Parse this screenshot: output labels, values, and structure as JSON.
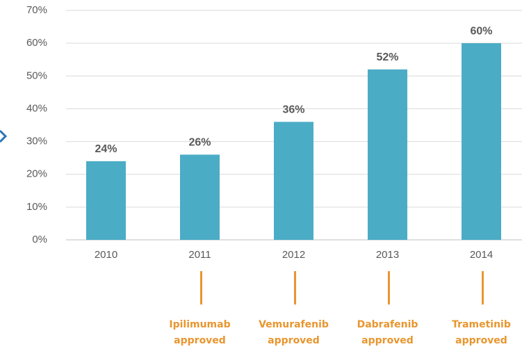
{
  "chart_data": {
    "type": "bar",
    "categories": [
      "2010",
      "2011",
      "2012",
      "2013",
      "2014"
    ],
    "values": [
      24,
      26,
      36,
      52,
      60
    ],
    "value_labels": [
      "24%",
      "26%",
      "36%",
      "52%",
      "60%"
    ],
    "color": "#4bacc6",
    "ylim": [
      0,
      70
    ],
    "yticks": [
      {
        "value": 0,
        "label": "0%"
      },
      {
        "value": 10,
        "label": "10%"
      },
      {
        "value": 20,
        "label": "20%"
      },
      {
        "value": 30,
        "label": "30%"
      },
      {
        "value": 40,
        "label": "40%"
      },
      {
        "value": 50,
        "label": "50%"
      },
      {
        "value": 60,
        "label": "60%"
      },
      {
        "value": 70,
        "label": "70%"
      }
    ],
    "grid": true,
    "annotations": [
      null,
      [
        "Ipilimumab",
        "approved"
      ],
      [
        "Vemurafenib",
        "approved"
      ],
      [
        "Dabrafenib",
        "approved"
      ],
      [
        "Trametinib",
        "approved"
      ]
    ]
  }
}
